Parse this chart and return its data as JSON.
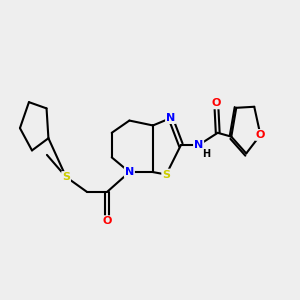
{
  "background_color": "#eeeeee",
  "bond_color": "#000000",
  "bond_width": 1.5,
  "atom_colors": {
    "N": "#0000ff",
    "O": "#ff0000",
    "S": "#cccc00",
    "NH": "#000000"
  },
  "font_size": 8,
  "figsize": [
    3.0,
    3.0
  ],
  "dpi": 100
}
